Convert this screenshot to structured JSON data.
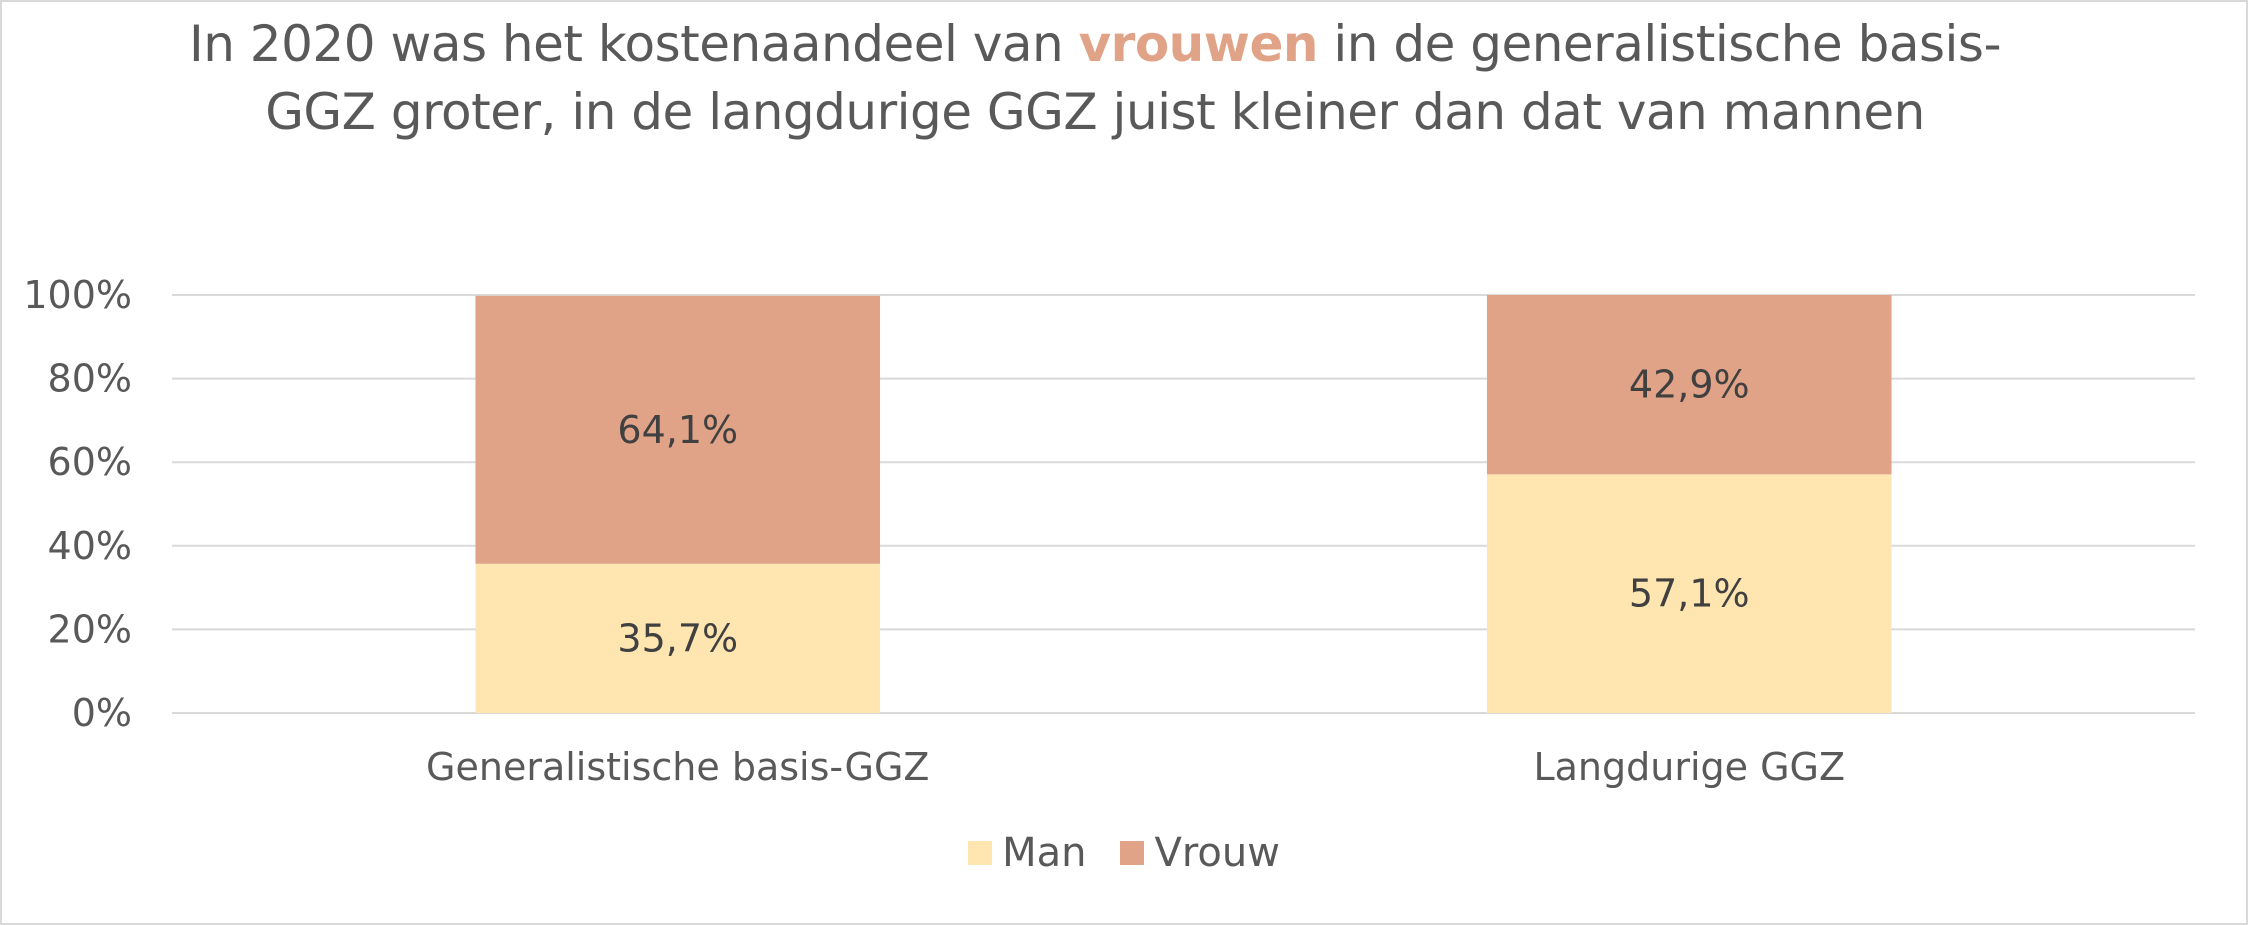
{
  "title": {
    "before": "In 2020 was het kostenaandeel van ",
    "highlight": "vrouwen",
    "after": " in de generalistische basis-GGZ groter, in de langdurige GGZ juist kleiner dan dat van mannen"
  },
  "colors": {
    "man": "#ffe5b0",
    "vrouw": "#e0a387",
    "grid": "#d9d9d9",
    "text": "#595959"
  },
  "chart_data": {
    "type": "bar",
    "stacked": true,
    "categories": [
      "Generalistische basis-GGZ",
      "Langdurige GGZ"
    ],
    "series": [
      {
        "name": "Man",
        "values": [
          35.7,
          57.1
        ],
        "labels": [
          "35,7%",
          "57,1%"
        ]
      },
      {
        "name": "Vrouw",
        "values": [
          64.1,
          42.9
        ],
        "labels": [
          "64,1%",
          "42,9%"
        ]
      }
    ],
    "ylim": [
      0,
      100
    ],
    "yticks": [
      "0%",
      "20%",
      "40%",
      "60%",
      "80%",
      "100%"
    ],
    "grid": true,
    "legend_position": "bottom"
  }
}
